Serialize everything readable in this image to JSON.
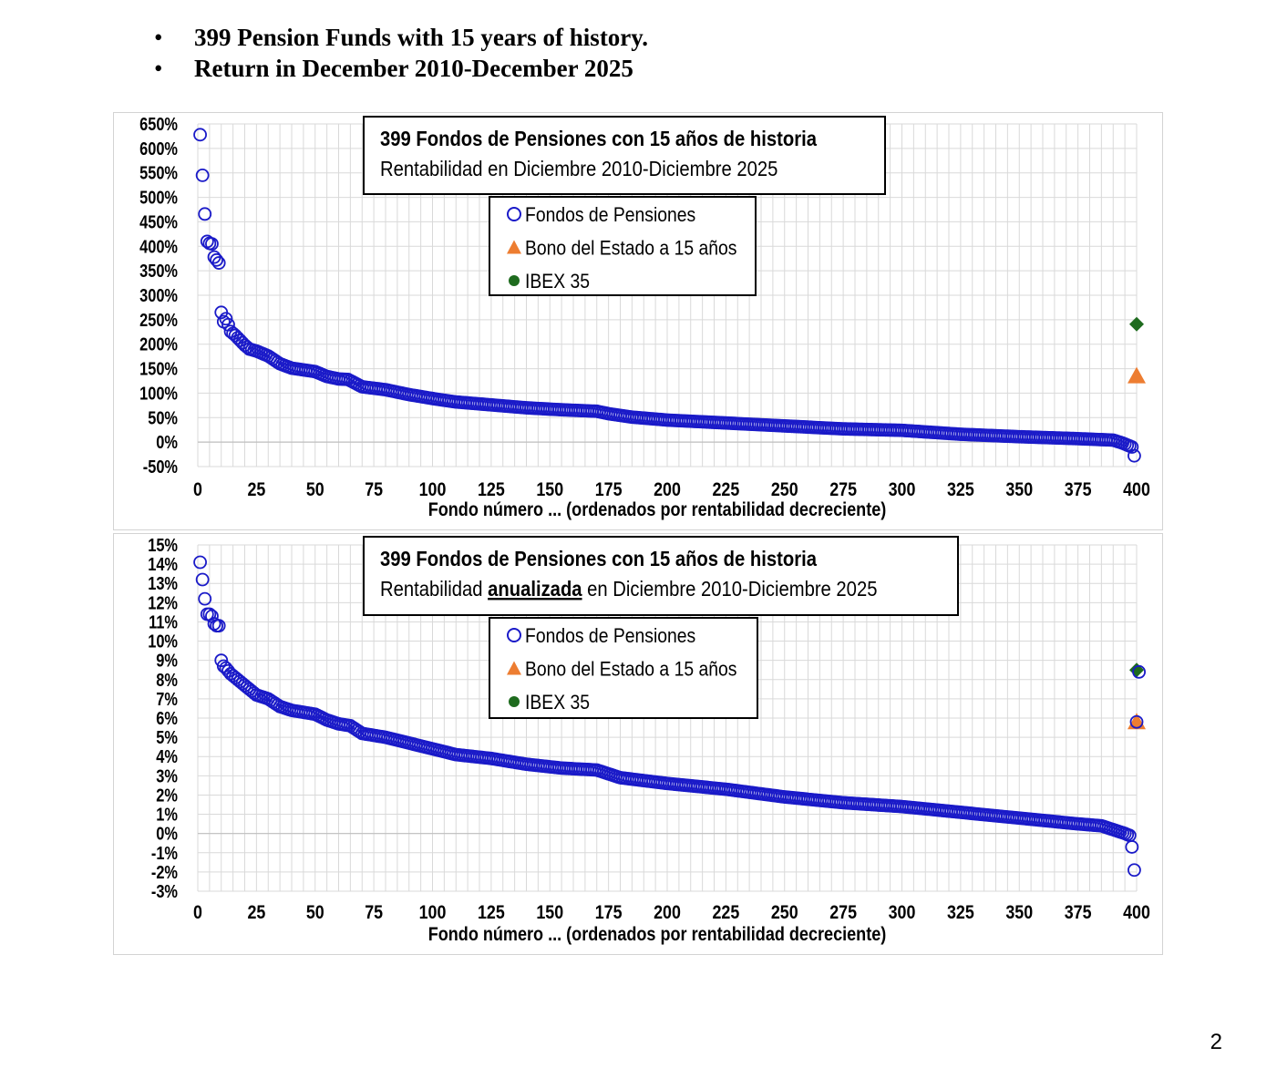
{
  "header": {
    "bullets": [
      {
        "symbol": "•",
        "text": "399 Pension Funds with 15 years of history."
      },
      {
        "symbol": "•",
        "text": "Return in December 2010-December 2025"
      }
    ]
  },
  "page_number": "2",
  "colors": {
    "funds": "#1a1ac8",
    "bond": "#ed7d31",
    "ibex": "#1e6b1e",
    "grid": "#d9d9d9"
  },
  "chart_data": [
    {
      "type": "scatter",
      "title_line1": "399  Fondos de Pensiones con 15 años de historia",
      "title_line2_parts": [
        "Rentabilidad  en Diciembre 2010-Diciembre  2025"
      ],
      "xlabel": "Fondo número ... (ordenados por rentabilidad decreciente)",
      "xlim": [
        0,
        400
      ],
      "x_ticks": [
        0,
        25,
        50,
        75,
        100,
        125,
        150,
        175,
        200,
        225,
        250,
        275,
        300,
        325,
        350,
        375,
        400
      ],
      "ylim": [
        -50,
        650
      ],
      "y_ticks": [
        -50,
        0,
        50,
        100,
        150,
        200,
        250,
        300,
        350,
        400,
        450,
        500,
        550,
        600,
        650
      ],
      "y_tick_labels": [
        "-50%",
        "0%",
        "50%",
        "100%",
        "150%",
        "200%",
        "250%",
        "300%",
        "350%",
        "400%",
        "450%",
        "500%",
        "550%",
        "600%",
        "650%"
      ],
      "legend": {
        "position": "top-center",
        "entries": [
          "Fondos de Pensiones",
          "Bono del Estado a 15 años",
          "IBEX 35"
        ]
      },
      "grid": true,
      "series": [
        {
          "name": "Fondos de Pensiones",
          "marker": "circle-open",
          "anchors": [
            [
              1,
              628
            ],
            [
              2,
              545
            ],
            [
              3,
              466
            ],
            [
              4,
              410
            ],
            [
              5,
              406
            ],
            [
              6,
              405
            ],
            [
              7,
              378
            ],
            [
              8,
              372
            ],
            [
              9,
              366
            ],
            [
              10,
              265
            ],
            [
              11,
              246
            ],
            [
              12,
              252
            ],
            [
              13,
              240
            ],
            [
              14,
              226
            ],
            [
              16,
              218
            ],
            [
              18,
              208
            ],
            [
              20,
              198
            ],
            [
              22,
              190
            ],
            [
              25,
              186
            ],
            [
              30,
              176
            ],
            [
              35,
              160
            ],
            [
              40,
              151
            ],
            [
              50,
              144
            ],
            [
              55,
              134
            ],
            [
              60,
              129
            ],
            [
              64,
              128
            ],
            [
              70,
              113
            ],
            [
              80,
              107
            ],
            [
              90,
              97
            ],
            [
              100,
              89
            ],
            [
              110,
              82
            ],
            [
              125,
              76
            ],
            [
              140,
              70
            ],
            [
              155,
              66
            ],
            [
              170,
              63
            ],
            [
              175,
              58
            ],
            [
              185,
              51
            ],
            [
              200,
              45
            ],
            [
              225,
              39
            ],
            [
              250,
              33
            ],
            [
              275,
              27
            ],
            [
              300,
              24
            ],
            [
              325,
              16
            ],
            [
              350,
              11
            ],
            [
              375,
              7
            ],
            [
              390,
              4
            ],
            [
              394,
              -2
            ],
            [
              396,
              -6
            ],
            [
              398,
              -10
            ],
            [
              399,
              -28
            ]
          ],
          "count": 399
        },
        {
          "name": "Bono del Estado a 15 años",
          "marker": "triangle",
          "values": [
            [
              400,
              135
            ]
          ]
        },
        {
          "name": "IBEX 35",
          "marker": "diamond",
          "values": [
            [
              400,
              241
            ]
          ]
        }
      ]
    },
    {
      "type": "scatter",
      "title_line1": "399  Fondos de Pensiones con 15 años de historia",
      "title_line2_parts": [
        "Rentabilidad  ",
        "anualizada",
        " en Diciembre 2010-Diciembre  2025"
      ],
      "xlabel": "Fondo número ... (ordenados por rentabilidad decreciente)",
      "xlim": [
        0,
        400
      ],
      "x_ticks": [
        0,
        25,
        50,
        75,
        100,
        125,
        150,
        175,
        200,
        225,
        250,
        275,
        300,
        325,
        350,
        375,
        400
      ],
      "ylim": [
        -3,
        15
      ],
      "y_ticks": [
        -3,
        -2,
        -1,
        0,
        1,
        2,
        3,
        4,
        5,
        6,
        7,
        8,
        9,
        10,
        11,
        12,
        13,
        14,
        15
      ],
      "y_tick_labels": [
        "-3%",
        "-2%",
        "-1%",
        "0%",
        "1%",
        "2%",
        "3%",
        "4%",
        "5%",
        "6%",
        "7%",
        "8%",
        "9%",
        "10%",
        "11%",
        "12%",
        "13%",
        "14%",
        "15%"
      ],
      "legend": {
        "position": "top-center",
        "entries": [
          "Fondos de Pensiones",
          "Bono del Estado a 15 años",
          "IBEX 35"
        ]
      },
      "grid": true,
      "series": [
        {
          "name": "Fondos de Pensiones",
          "marker": "circle-open",
          "anchors": [
            [
              1,
              14.1
            ],
            [
              2,
              13.2
            ],
            [
              3,
              12.2
            ],
            [
              4,
              11.4
            ],
            [
              5,
              11.4
            ],
            [
              6,
              11.3
            ],
            [
              7,
              10.9
            ],
            [
              8,
              10.8
            ],
            [
              9,
              10.8
            ],
            [
              10,
              9.0
            ],
            [
              11,
              8.7
            ],
            [
              12,
              8.6
            ],
            [
              14,
              8.3
            ],
            [
              16,
              8.1
            ],
            [
              18,
              7.9
            ],
            [
              20,
              7.7
            ],
            [
              25,
              7.2
            ],
            [
              30,
              7.0
            ],
            [
              35,
              6.6
            ],
            [
              40,
              6.4
            ],
            [
              50,
              6.2
            ],
            [
              55,
              5.9
            ],
            [
              60,
              5.7
            ],
            [
              65,
              5.6
            ],
            [
              70,
              5.2
            ],
            [
              80,
              5.0
            ],
            [
              90,
              4.7
            ],
            [
              100,
              4.4
            ],
            [
              110,
              4.1
            ],
            [
              125,
              3.9
            ],
            [
              140,
              3.6
            ],
            [
              155,
              3.4
            ],
            [
              170,
              3.3
            ],
            [
              180,
              2.9
            ],
            [
              200,
              2.6
            ],
            [
              225,
              2.3
            ],
            [
              250,
              1.9
            ],
            [
              275,
              1.6
            ],
            [
              300,
              1.4
            ],
            [
              325,
              1.1
            ],
            [
              350,
              0.8
            ],
            [
              375,
              0.5
            ],
            [
              385,
              0.4
            ],
            [
              390,
              0.2
            ],
            [
              395,
              0.0
            ],
            [
              397,
              -0.1
            ],
            [
              398,
              -0.7
            ],
            [
              399,
              -1.9
            ]
          ],
          "count": 399
        },
        {
          "name": "Bono del Estado a 15 años",
          "marker": "triangle",
          "values": [
            [
              400,
              5.8
            ]
          ]
        },
        {
          "name": "IBEX 35",
          "marker": "diamond",
          "values": [
            [
              400,
              8.5
            ]
          ]
        },
        {
          "name": "",
          "marker": "circle-open",
          "values": [
            [
              400,
              5.8
            ],
            [
              401,
              8.4
            ]
          ]
        }
      ]
    }
  ]
}
